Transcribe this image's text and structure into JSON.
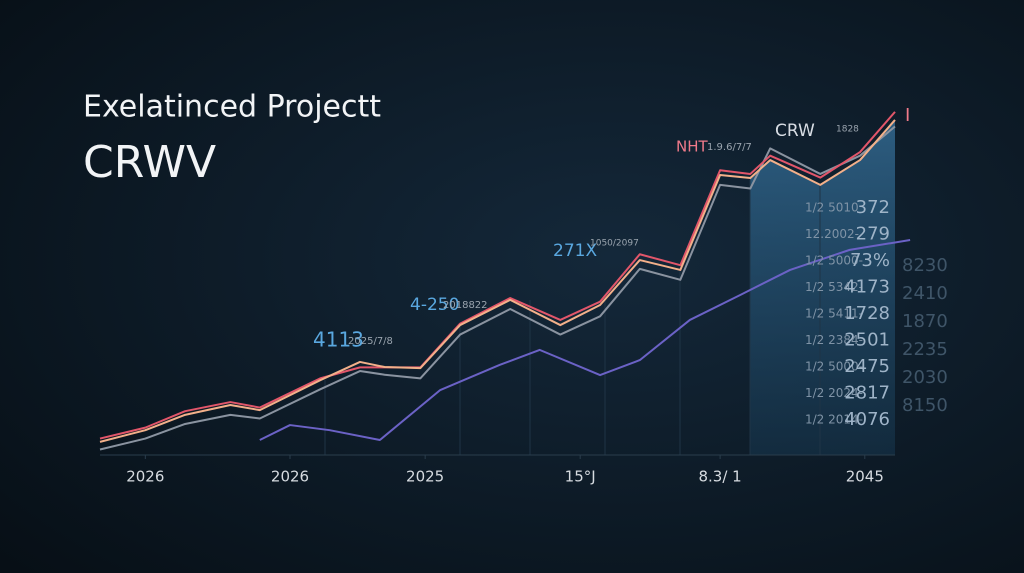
{
  "chart_data": {
    "type": "line",
    "title": "Exelatinced Projectt",
    "subtitle": "CRWV",
    "xlim": [
      0,
      105
    ],
    "ylim": [
      0,
      100
    ],
    "xticks": [
      {
        "value": 5.7,
        "label": "2026"
      },
      {
        "value": 23.9,
        "label": "2026"
      },
      {
        "value": 40.9,
        "label": "2025"
      },
      {
        "value": 60.4,
        "label": "15°J"
      },
      {
        "value": 78,
        "label": "8.3/ 1"
      },
      {
        "value": 96.2,
        "label": "2045"
      }
    ],
    "series": [
      {
        "color": "#8a93a0",
        "x": [
          0,
          5.7,
          10.7,
          16.4,
          20.1,
          27.7,
          32.7,
          35.8,
          40.3,
          45.3,
          51.6,
          57.9,
          62.9,
          67.9,
          73,
          78,
          81.8,
          84.3,
          90.6,
          95.6,
          100
        ],
        "values": [
          1.5,
          4.5,
          8.5,
          11,
          10,
          18,
          23,
          22,
          21,
          33,
          40,
          33,
          38,
          51,
          48,
          74,
          73,
          84,
          77,
          82,
          90
        ]
      },
      {
        "color": "#e2566a",
        "x": [
          0,
          5.7,
          10.7,
          16.4,
          20.1,
          27.7,
          32.7,
          35.8,
          40.3,
          45.3,
          51.6,
          57.9,
          62.9,
          67.9,
          73,
          78,
          81.8,
          84.3,
          90.6,
          95.6,
          100
        ],
        "values": [
          4.5,
          7.5,
          12,
          14.5,
          13,
          21,
          24,
          24,
          24,
          36,
          43,
          37,
          42,
          55,
          52,
          78,
          77,
          82,
          76,
          83,
          94
        ]
      },
      {
        "color": "#f3b08a",
        "x": [
          0,
          5.7,
          10.7,
          16.4,
          20.1,
          27.7,
          32.7,
          35.8,
          40.3,
          45.3,
          51.6,
          57.9,
          62.9,
          67.9,
          73,
          78,
          81.8,
          84.3,
          90.6,
          95.6,
          100
        ],
        "values": [
          3.6,
          6.8,
          11,
          13.7,
          12.3,
          20.5,
          25.5,
          24.1,
          23.8,
          35.6,
          42.5,
          35.6,
          41.1,
          53.4,
          50.7,
          76.7,
          75.9,
          80.8,
          74,
          80.8,
          91.8
        ]
      },
      {
        "color": "#6b62c6",
        "x": [
          20.1,
          23.9,
          28.9,
          35.2,
          42.8,
          50.3,
          55.3,
          62.9,
          67.9,
          74.2,
          80.5,
          86.8,
          94.3,
          101.9
        ],
        "values": [
          4.1,
          8.2,
          6.8,
          4.1,
          17.8,
          24.7,
          28.8,
          21.9,
          26,
          37,
          43.8,
          50.7,
          56.2,
          58.9
        ]
      }
    ],
    "annotations": [
      {
        "text": "4113",
        "color": "#5aa8e0"
      },
      {
        "text": "2025/7/8",
        "color": "#9aa4ae"
      },
      {
        "text": "4-250",
        "color": "#5aa8e0"
      },
      {
        "text": "2018822",
        "color": "#9aa4ae"
      },
      {
        "text": "271X",
        "color": "#5aa8e0"
      },
      {
        "text": "1050/2097",
        "color": "#9aa4ae"
      },
      {
        "text": "NHT",
        "color": "#f07a8a"
      },
      {
        "text": "1.9.6/7/7",
        "color": "#9aa4ae"
      },
      {
        "text": "CRW",
        "color": "#d8dde4"
      },
      {
        "text": "1828",
        "color": "#9aa4ae"
      },
      {
        "text": "I",
        "color": "#f07a8a"
      }
    ],
    "side_rows": [
      {
        "left": "1/2 5010",
        "right": "372"
      },
      {
        "left": "12.2002-",
        "right": "279"
      },
      {
        "left": "1/2 5000-",
        "right": "73%"
      },
      {
        "left": "1/2 5342-",
        "right": "4173"
      },
      {
        "left": "1/2 5411-",
        "right": "1728"
      },
      {
        "left": "1/2 2384-",
        "right": "2501"
      },
      {
        "left": "1/2 5000-",
        "right": "2475"
      },
      {
        "left": "1/2 2024-",
        "right": "2817"
      },
      {
        "left": "1/2 2014-",
        "right": "4076"
      }
    ],
    "far_column": [
      "8230",
      "2410",
      "1870",
      "2235",
      "2030",
      "8150"
    ]
  }
}
